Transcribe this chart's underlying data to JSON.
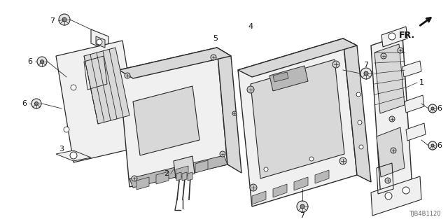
{
  "bg_color": "#ffffff",
  "diagram_code": "TJB4B1120",
  "line_color": "#2a2a2a",
  "light_fill": "#f0f0f0",
  "mid_fill": "#d8d8d8",
  "dark_fill": "#b8b8b8",
  "figsize": [
    6.4,
    3.2
  ],
  "dpi": 100
}
